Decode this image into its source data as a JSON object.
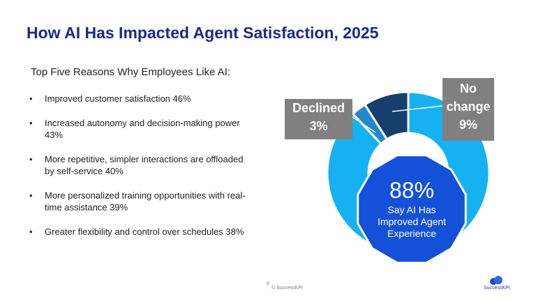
{
  "title": "How AI Has Impacted Agent Satisfaction, 2025",
  "subtitle": "Top Five Reasons Why Employees Like AI:",
  "bullets": [
    "Improved customer satisfaction 46%",
    "Increased autonomy and decision-making power 43%",
    "More repetitive, simpler interactions are offloaded by self-service 40%",
    "More personalized training opportunities with real-time assistance 39%",
    "Greater flexibility and control over schedules 38%"
  ],
  "footer": {
    "page": "8",
    "copyright": "© SuccessKPI",
    "logo": "SuccessKPI"
  },
  "chart_data": {
    "type": "donut",
    "categories": [
      "Say AI Has Improved Agent Experience",
      "Declined",
      "No change"
    ],
    "values": [
      88,
      3,
      9
    ],
    "value_labels": [
      "88%",
      "3%",
      "9%"
    ],
    "colors": [
      "#16b1f0",
      "#2288cc",
      "#173f6b"
    ]
  }
}
